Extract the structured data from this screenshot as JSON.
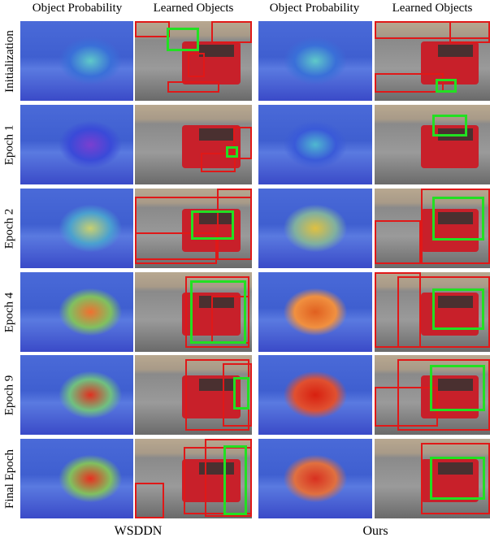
{
  "headers": [
    "Object Probability",
    "Learned Objects",
    "Object Probability",
    "Learned Objects"
  ],
  "rows": [
    "Initialization",
    "Epoch 1",
    "Epoch 2",
    "Epoch 4",
    "Epoch 9",
    "Final Epoch"
  ],
  "groups": [
    "WSDDN",
    "Ours"
  ]
}
